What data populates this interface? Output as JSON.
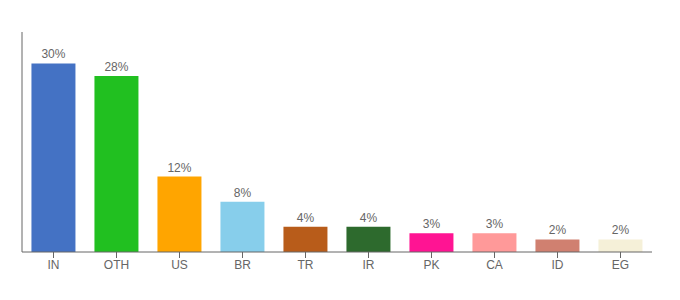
{
  "chart_data": {
    "type": "bar",
    "categories": [
      "IN",
      "OTH",
      "US",
      "BR",
      "TR",
      "IR",
      "PK",
      "CA",
      "ID",
      "EG"
    ],
    "values": [
      30,
      28,
      12,
      8,
      4,
      4,
      3,
      3,
      2,
      2
    ],
    "value_labels": [
      "30%",
      "28%",
      "12%",
      "8%",
      "4%",
      "4%",
      "3%",
      "3%",
      "2%",
      "2%"
    ],
    "colors": [
      "#4472c4",
      "#21c020",
      "#ffa500",
      "#87ceeb",
      "#b85c1a",
      "#2d6a2d",
      "#ff1493",
      "#ff9999",
      "#d08070",
      "#f5f0d8"
    ],
    "ylim": [
      0,
      35
    ],
    "data_labels": true,
    "tick_labels": "x"
  }
}
